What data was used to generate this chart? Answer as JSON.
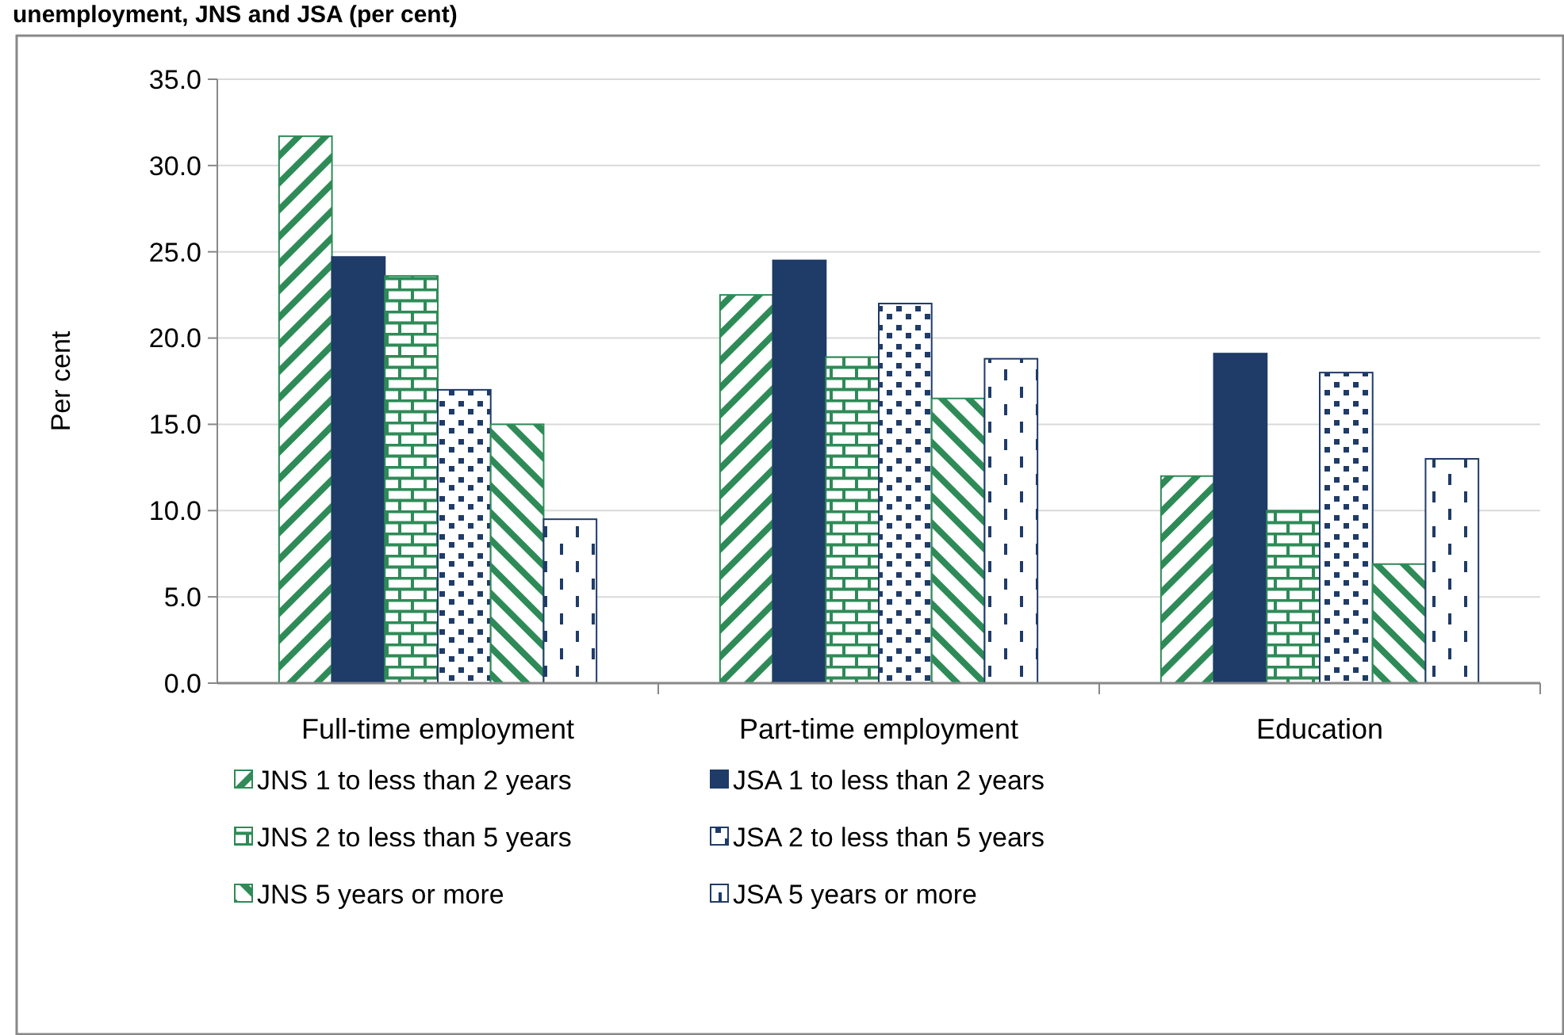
{
  "chart_data": {
    "type": "bar",
    "title": "unemployment, JNS and JSA (per cent)",
    "ylabel": "Per cent",
    "categories": [
      "Full-time employment",
      "Part-time employment",
      "Education"
    ],
    "series": [
      {
        "name": "JNS 1 to less than 2 years",
        "color": "#2e8b57",
        "values": [
          31.7,
          22.5,
          12.0
        ]
      },
      {
        "name": "JSA 1 to less than 2 years",
        "color": "#1f3b68",
        "values": [
          24.7,
          24.5,
          19.1
        ]
      },
      {
        "name": "JNS 2 to less than 5 years",
        "color": "#2e8b57",
        "values": [
          23.6,
          18.9,
          10.0
        ]
      },
      {
        "name": "JSA 2 to less than 5 years",
        "color": "#1f3b68",
        "values": [
          17.0,
          22.0,
          18.0
        ]
      },
      {
        "name": "JNS 5 years or more",
        "color": "#2e8b57",
        "values": [
          15.0,
          16.5,
          6.9
        ]
      },
      {
        "name": "JSA 5 years or more",
        "color": "#1f3b68",
        "values": [
          9.5,
          18.8,
          13.0
        ]
      }
    ],
    "ylim": [
      0,
      35
    ],
    "yticks": [
      {
        "value": 0,
        "label": "0.0"
      },
      {
        "value": 5,
        "label": "5.0"
      },
      {
        "value": 10,
        "label": "10.0"
      },
      {
        "value": 15,
        "label": "15.0"
      },
      {
        "value": 20,
        "label": "20.0"
      },
      {
        "value": 25,
        "label": "25.0"
      },
      {
        "value": 30,
        "label": "30.0"
      },
      {
        "value": 35,
        "label": "35.0"
      }
    ],
    "grid": "y",
    "legend": "bottom"
  }
}
